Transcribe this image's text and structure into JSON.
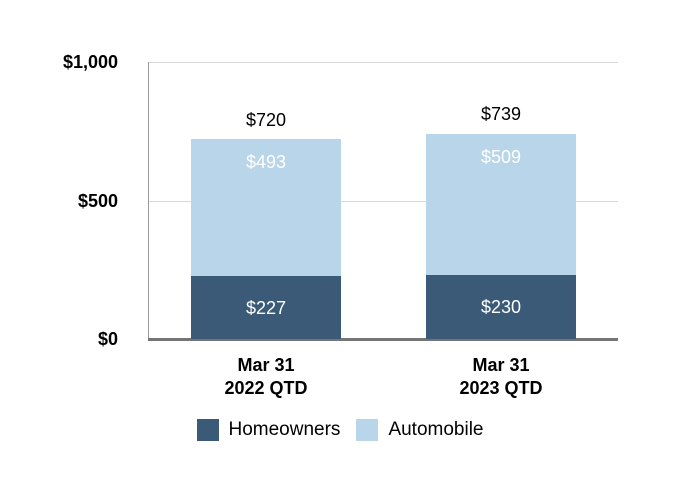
{
  "chart_data": {
    "type": "bar",
    "stacked": true,
    "title": "",
    "xlabel": "",
    "ylabel": "",
    "ylim": [
      0,
      1000
    ],
    "grid": true,
    "legend_position": "bottom",
    "value_prefix": "$",
    "categories": [
      {
        "lines": [
          "Mar 31",
          "2022 QTD"
        ]
      },
      {
        "lines": [
          "Mar 31",
          "2023 QTD"
        ]
      }
    ],
    "y_axis": {
      "ticks": [
        {
          "value": 0,
          "label": "$0"
        },
        {
          "value": 500,
          "label": "$500"
        },
        {
          "value": 1000,
          "label": "$1,000"
        }
      ]
    },
    "series": [
      {
        "name": "Homeowners",
        "color": "#3b5a78",
        "values": [
          227,
          230
        ],
        "labels": [
          "$227",
          "$230"
        ]
      },
      {
        "name": "Automobile",
        "color": "#b9d5ea",
        "values": [
          493,
          509
        ],
        "labels": [
          "$493",
          "$509"
        ]
      }
    ],
    "totals": {
      "values": [
        720,
        739
      ],
      "labels": [
        "$720",
        "$739"
      ]
    },
    "colors": {
      "homeowners": "#3b5a78",
      "automobile": "#b9d5ea",
      "gridline": "#d9d9d9",
      "axis_line": "#757575",
      "label_text": "#000000",
      "segment_label_text": "#ffffff",
      "background": "#ffffff"
    }
  }
}
